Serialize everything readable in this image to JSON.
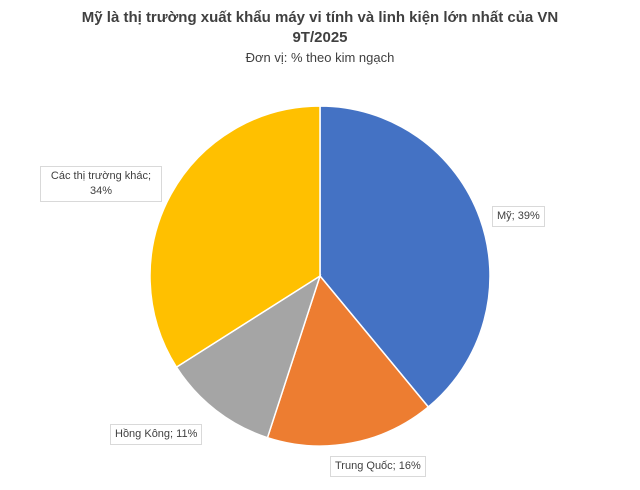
{
  "chart_data": {
    "type": "pie",
    "title": "Mỹ là thị trường xuất khẩu máy vi tính và linh kiện lớn nhất của VN 9T/2025",
    "subtitle": "Đơn vị: % theo kim ngạch",
    "categories": [
      "Mỹ",
      "Trung Quốc",
      "Hồng Kông",
      "Các thị trường khác"
    ],
    "values": [
      39,
      16,
      11,
      34
    ],
    "value_labels": [
      "Mỹ; 39%",
      "Trung Quốc; 16%",
      "Hồng Kông; 11%",
      "Các thị trường khác; 34%"
    ],
    "colors": [
      "#4472c4",
      "#ed7d31",
      "#a5a5a5",
      "#ffc000"
    ]
  }
}
